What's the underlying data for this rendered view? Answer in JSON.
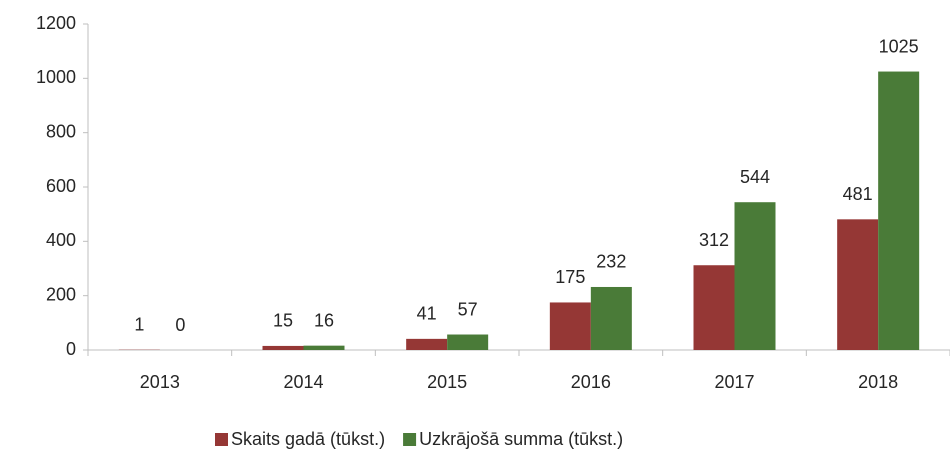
{
  "chart_data": {
    "type": "bar",
    "categories": [
      "2013",
      "2014",
      "2015",
      "2016",
      "2017",
      "2018"
    ],
    "series": [
      {
        "name": "Skaits gadā (tūkst.)",
        "color": "#953735",
        "values": [
          1,
          15,
          41,
          175,
          312,
          481
        ]
      },
      {
        "name": "Uzkrājošā summa (tūkst.)",
        "color": "#4a7b38",
        "values": [
          0,
          16,
          57,
          232,
          544,
          1025
        ]
      }
    ],
    "ylim": [
      0,
      1200
    ],
    "yticks": [
      0,
      200,
      400,
      600,
      800,
      1000,
      1200
    ],
    "grid": false,
    "legend": "bottom"
  }
}
